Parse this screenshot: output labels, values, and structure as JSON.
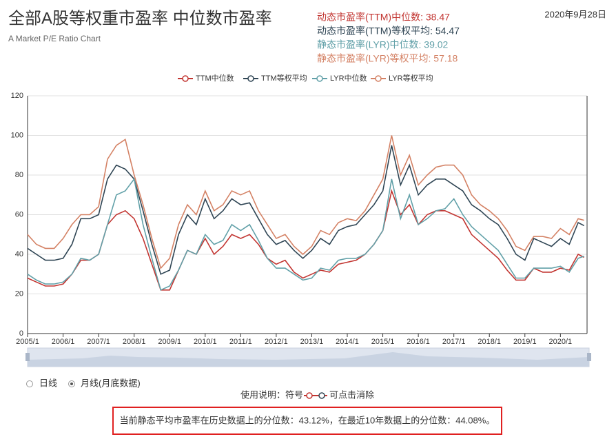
{
  "header": {
    "title": "全部A股等权重市盈率 中位数市盈率",
    "subtitle": "A Market P/E Ratio Chart",
    "date": "2020年9月28日",
    "stats": [
      "动态市盈率(TTM)中位数: 38.47",
      "动态市盈率(TTM)等权平均: 54.47",
      "静态市盈率(LYR)中位数: 39.02",
      "静态市盈率(LYR)等权平均: 57.18"
    ]
  },
  "chart_data": {
    "type": "line",
    "x": [
      "2005/1",
      "2005/4",
      "2005/7",
      "2005/10",
      "2006/1",
      "2006/4",
      "2006/7",
      "2006/10",
      "2007/1",
      "2007/4",
      "2007/7",
      "2007/10",
      "2008/1",
      "2008/4",
      "2008/7",
      "2008/10",
      "2009/1",
      "2009/4",
      "2009/7",
      "2009/10",
      "2010/1",
      "2010/4",
      "2010/7",
      "2010/10",
      "2011/1",
      "2011/4",
      "2011/7",
      "2011/10",
      "2012/1",
      "2012/4",
      "2012/7",
      "2012/10",
      "2013/1",
      "2013/4",
      "2013/7",
      "2013/10",
      "2014/1",
      "2014/4",
      "2014/7",
      "2014/10",
      "2015/1",
      "2015/4",
      "2015/7",
      "2015/10",
      "2016/1",
      "2016/4",
      "2016/7",
      "2016/10",
      "2017/1",
      "2017/4",
      "2017/7",
      "2017/10",
      "2018/1",
      "2018/4",
      "2018/7",
      "2018/10",
      "2019/1",
      "2019/4",
      "2019/7",
      "2019/10",
      "2020/1",
      "2020/4",
      "2020/7",
      "2020/9"
    ],
    "series": [
      {
        "name": "TTM中位数",
        "color": "#c23531",
        "values": [
          28,
          26,
          24,
          24,
          25,
          30,
          37,
          37,
          40,
          55,
          60,
          62,
          58,
          48,
          35,
          22,
          22,
          32,
          42,
          40,
          48,
          40,
          44,
          50,
          48,
          50,
          45,
          38,
          35,
          37,
          31,
          28,
          30,
          32,
          31,
          35,
          36,
          37,
          40,
          45,
          52,
          72,
          60,
          65,
          55,
          60,
          62,
          62,
          60,
          58,
          50,
          46,
          42,
          38,
          32,
          27,
          27,
          33,
          31,
          31,
          33,
          32,
          40,
          38.47
        ]
      },
      {
        "name": "TTM等权平均",
        "color": "#2f4554",
        "values": [
          43,
          40,
          37,
          37,
          38,
          45,
          58,
          58,
          60,
          78,
          85,
          83,
          78,
          62,
          45,
          30,
          32,
          50,
          60,
          55,
          68,
          58,
          62,
          68,
          65,
          66,
          58,
          50,
          45,
          47,
          42,
          38,
          42,
          48,
          45,
          52,
          54,
          55,
          60,
          65,
          72,
          95,
          75,
          85,
          70,
          75,
          78,
          78,
          75,
          72,
          65,
          62,
          58,
          55,
          48,
          40,
          37,
          48,
          46,
          44,
          48,
          45,
          56,
          54.47
        ]
      },
      {
        "name": "LYR中位数",
        "color": "#61a0a8",
        "values": [
          30,
          27,
          25,
          25,
          26,
          30,
          38,
          37,
          40,
          55,
          70,
          72,
          78,
          55,
          38,
          22,
          24,
          32,
          42,
          40,
          50,
          45,
          47,
          55,
          52,
          55,
          47,
          38,
          33,
          33,
          30,
          27,
          28,
          33,
          32,
          37,
          38,
          38,
          40,
          45,
          52,
          78,
          58,
          70,
          55,
          58,
          62,
          63,
          68,
          60,
          54,
          50,
          46,
          42,
          35,
          28,
          28,
          33,
          33,
          33,
          34,
          31,
          38,
          39.02
        ]
      },
      {
        "name": "LYR等权平均",
        "color": "#d48265",
        "values": [
          50,
          45,
          43,
          43,
          48,
          55,
          60,
          60,
          64,
          88,
          95,
          98,
          80,
          65,
          48,
          33,
          38,
          55,
          65,
          60,
          72,
          62,
          65,
          72,
          70,
          72,
          62,
          55,
          48,
          50,
          44,
          40,
          44,
          52,
          50,
          56,
          58,
          57,
          62,
          70,
          78,
          100,
          80,
          90,
          75,
          80,
          84,
          85,
          85,
          80,
          70,
          65,
          62,
          58,
          52,
          44,
          42,
          49,
          49,
          48,
          53,
          50,
          58,
          57.18
        ]
      }
    ],
    "xlim": [
      "2005/1",
      "2020/10"
    ],
    "xticks": [
      "2005/1",
      "2006/1",
      "2007/1",
      "2008/1",
      "2009/1",
      "2010/1",
      "2011/1",
      "2012/1",
      "2013/1",
      "2014/1",
      "2015/1",
      "2016/1",
      "2017/1",
      "2018/1",
      "2019/1",
      "2020/1"
    ],
    "ylim": [
      0,
      120
    ],
    "yticks": [
      0,
      20,
      40,
      60,
      80,
      100,
      120
    ],
    "grid": true
  },
  "controls": {
    "radio_daily": "日线",
    "radio_monthly": "月线(月底数据)",
    "usage_prefix": "使用说明：符号",
    "usage_suffix": "可点击消除"
  },
  "footer": {
    "note": "当前静态平均市盈率在历史数据上的分位数：43.12%，在最近10年数据上的分位数：44.08%。"
  }
}
